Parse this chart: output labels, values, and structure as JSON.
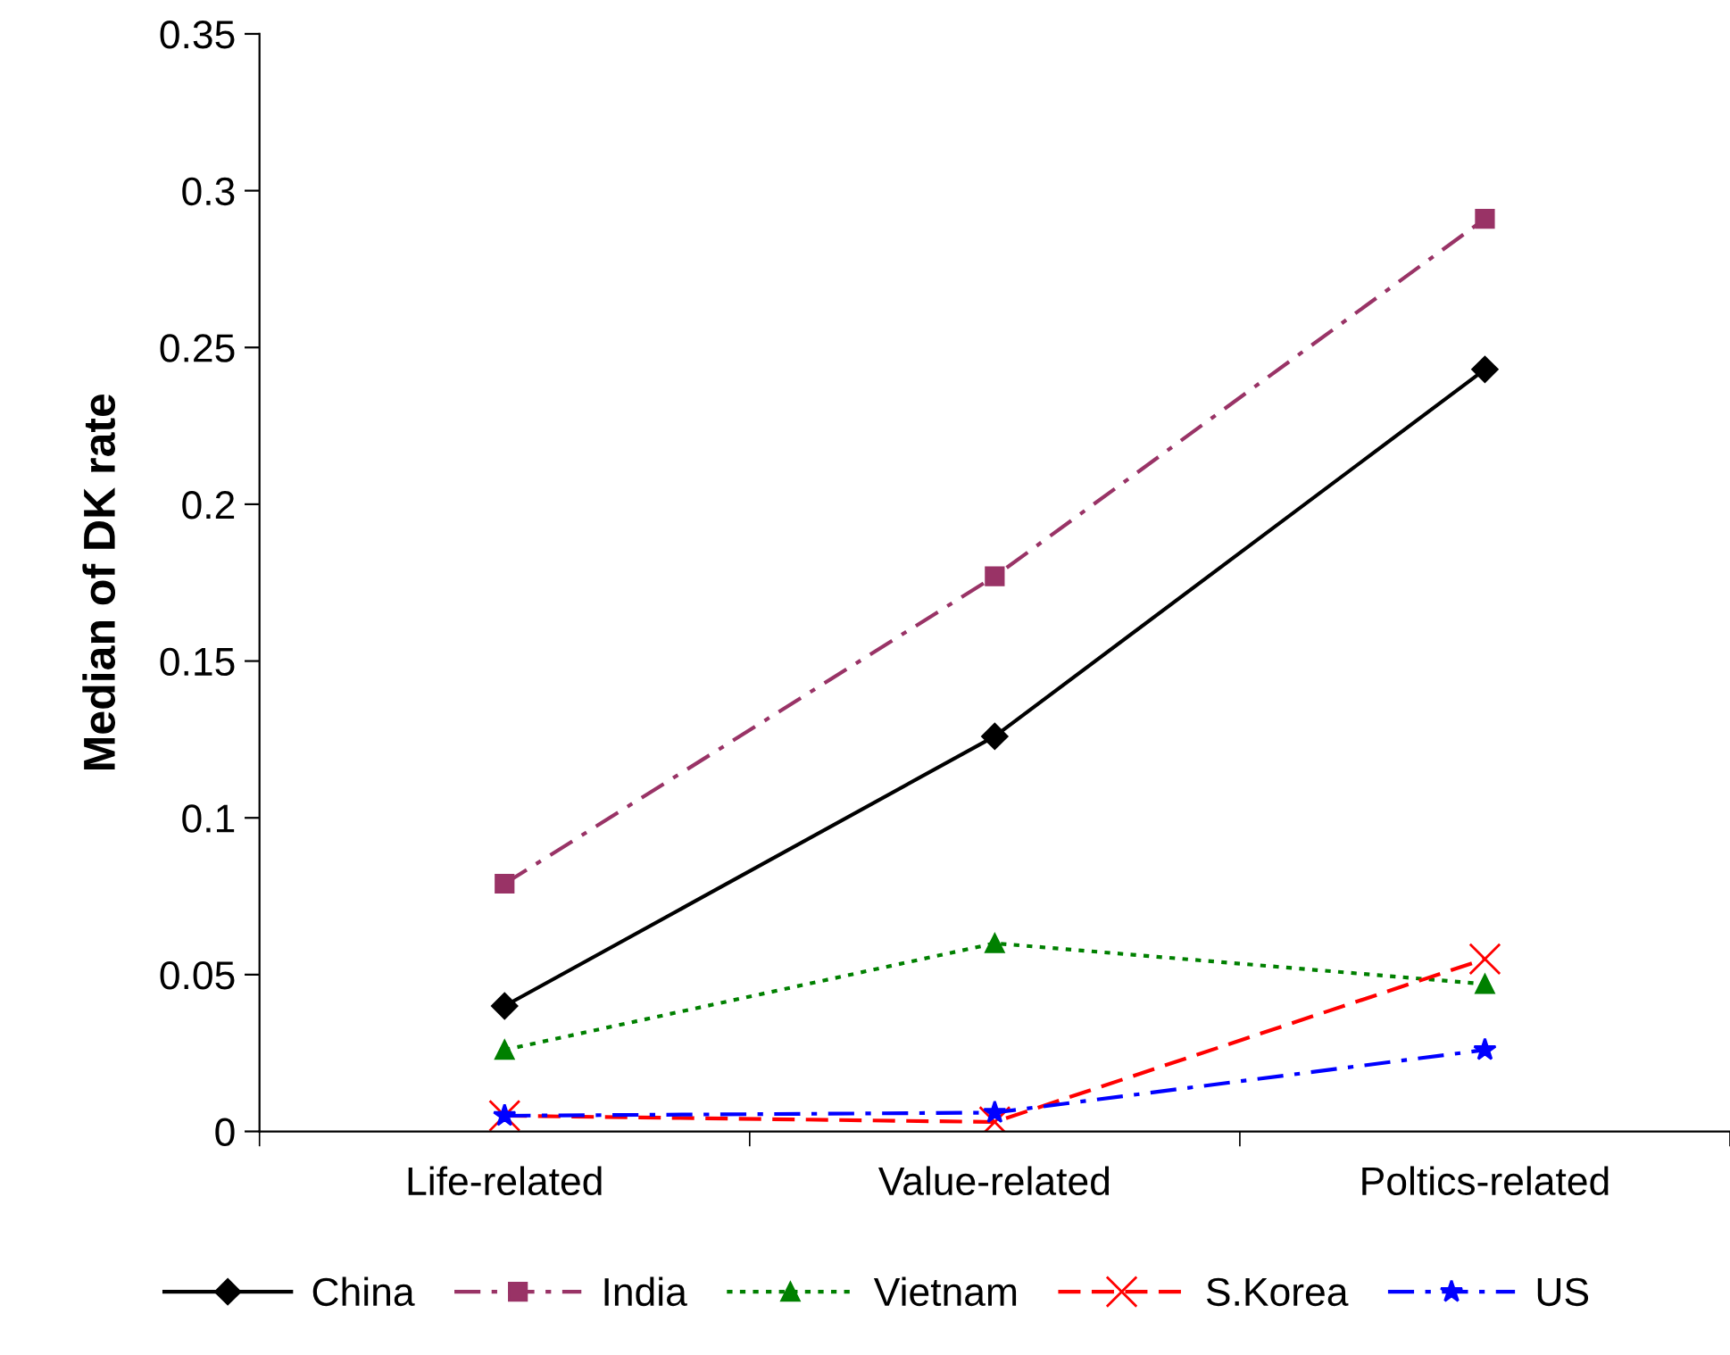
{
  "chart_data": {
    "type": "line",
    "ylabel": "Median of DK rate",
    "categories": [
      "Life-related",
      "Value-related",
      "Poltics-related"
    ],
    "series": [
      {
        "name": "China",
        "color": "#000000",
        "marker": "diamond",
        "line_style": "solid",
        "values": [
          0.04,
          0.126,
          0.243
        ]
      },
      {
        "name": "India",
        "color": "#993366",
        "marker": "square",
        "line_style": "dashdot",
        "values": [
          0.079,
          0.177,
          0.291
        ]
      },
      {
        "name": "Vietnam",
        "color": "#008000",
        "marker": "triangle",
        "line_style": "dotted",
        "values": [
          0.026,
          0.06,
          0.047
        ]
      },
      {
        "name": "S.Korea",
        "color": "#ff0000",
        "marker": "cross",
        "line_style": "dashed",
        "values": [
          0.005,
          0.003,
          0.055
        ]
      },
      {
        "name": "US",
        "color": "#0000ff",
        "marker": "star",
        "line_style": "dashdot",
        "values": [
          0.005,
          0.006,
          0.026
        ]
      }
    ],
    "ylim": [
      0,
      0.35
    ],
    "yticks": [
      {
        "value": 0,
        "label": "0"
      },
      0.05,
      0.1,
      0.15,
      0.2,
      0.25,
      0.3,
      0.35
    ],
    "grid": false,
    "legend": "bottom"
  }
}
